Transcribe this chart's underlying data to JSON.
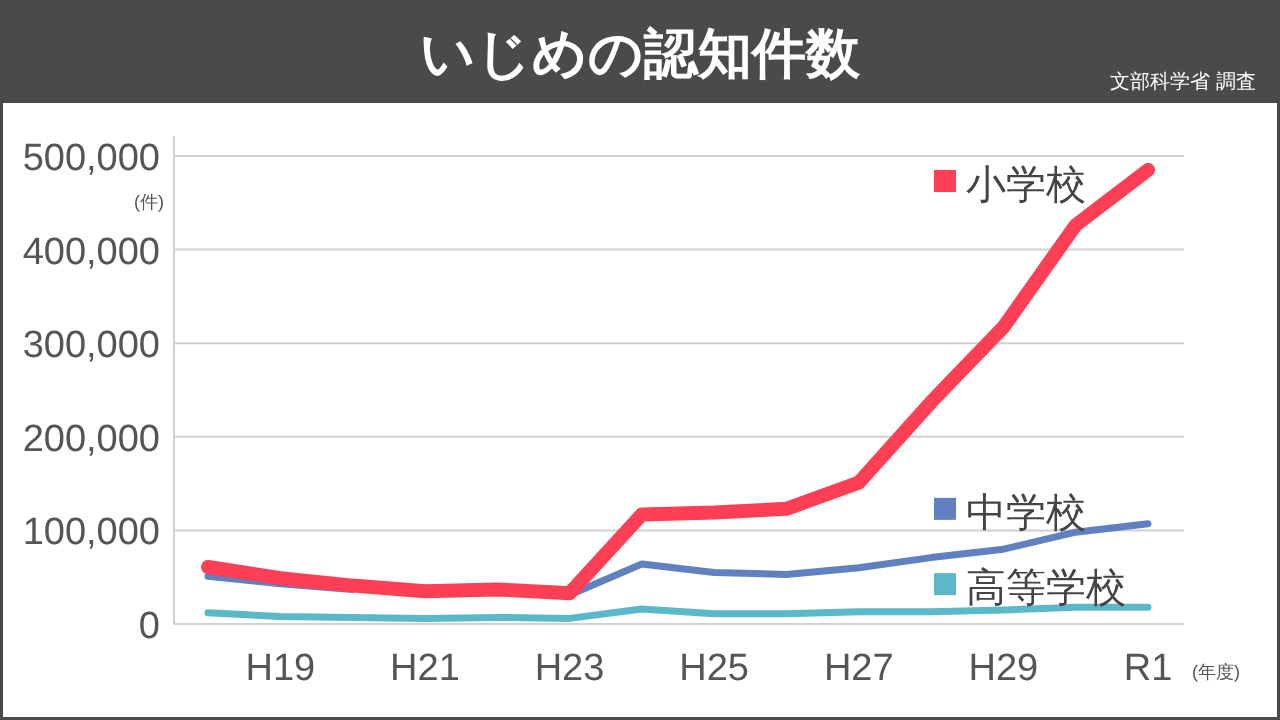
{
  "chart_data": {
    "type": "line",
    "title": "いじめの認知件数",
    "annotations": [
      "文部科学省 調査"
    ],
    "ylabel": "(件)",
    "xlabel": "(年度)",
    "categories": [
      null,
      "H19",
      null,
      "H21",
      null,
      "H23",
      null,
      "H25",
      null,
      "H27",
      null,
      "H29",
      null,
      "R1"
    ],
    "ylim": [
      0,
      500000
    ],
    "yticks": [
      {
        "value": 0,
        "label": "0"
      },
      {
        "value": 100000,
        "label": "100,000"
      },
      {
        "value": 200000,
        "label": "200,000"
      },
      {
        "value": 300000,
        "label": "300,000"
      },
      {
        "value": 400000,
        "label": "400,000"
      },
      {
        "value": 500000,
        "label": "500,000"
      }
    ],
    "grid": "y",
    "marker": "none",
    "legend": "right",
    "series": [
      {
        "name": "小学校",
        "color": "#ff3f55",
        "values": [
          61000,
          49000,
          41000,
          35000,
          37000,
          33000,
          117000,
          119000,
          123000,
          151000,
          237000,
          317000,
          426000,
          485000
        ]
      },
      {
        "name": "中学校",
        "color": "#6080c0",
        "values": [
          51000,
          43000,
          37000,
          null,
          null,
          31000,
          64000,
          55000,
          53000,
          60000,
          71000,
          80000,
          98000,
          107000
        ]
      },
      {
        "name": "高等学校",
        "color": "#5ab8c8",
        "values": [
          12000,
          8000,
          7000,
          6000,
          7000,
          6000,
          16000,
          11000,
          11000,
          13000,
          13000,
          15000,
          18000,
          18000
        ]
      }
    ]
  }
}
